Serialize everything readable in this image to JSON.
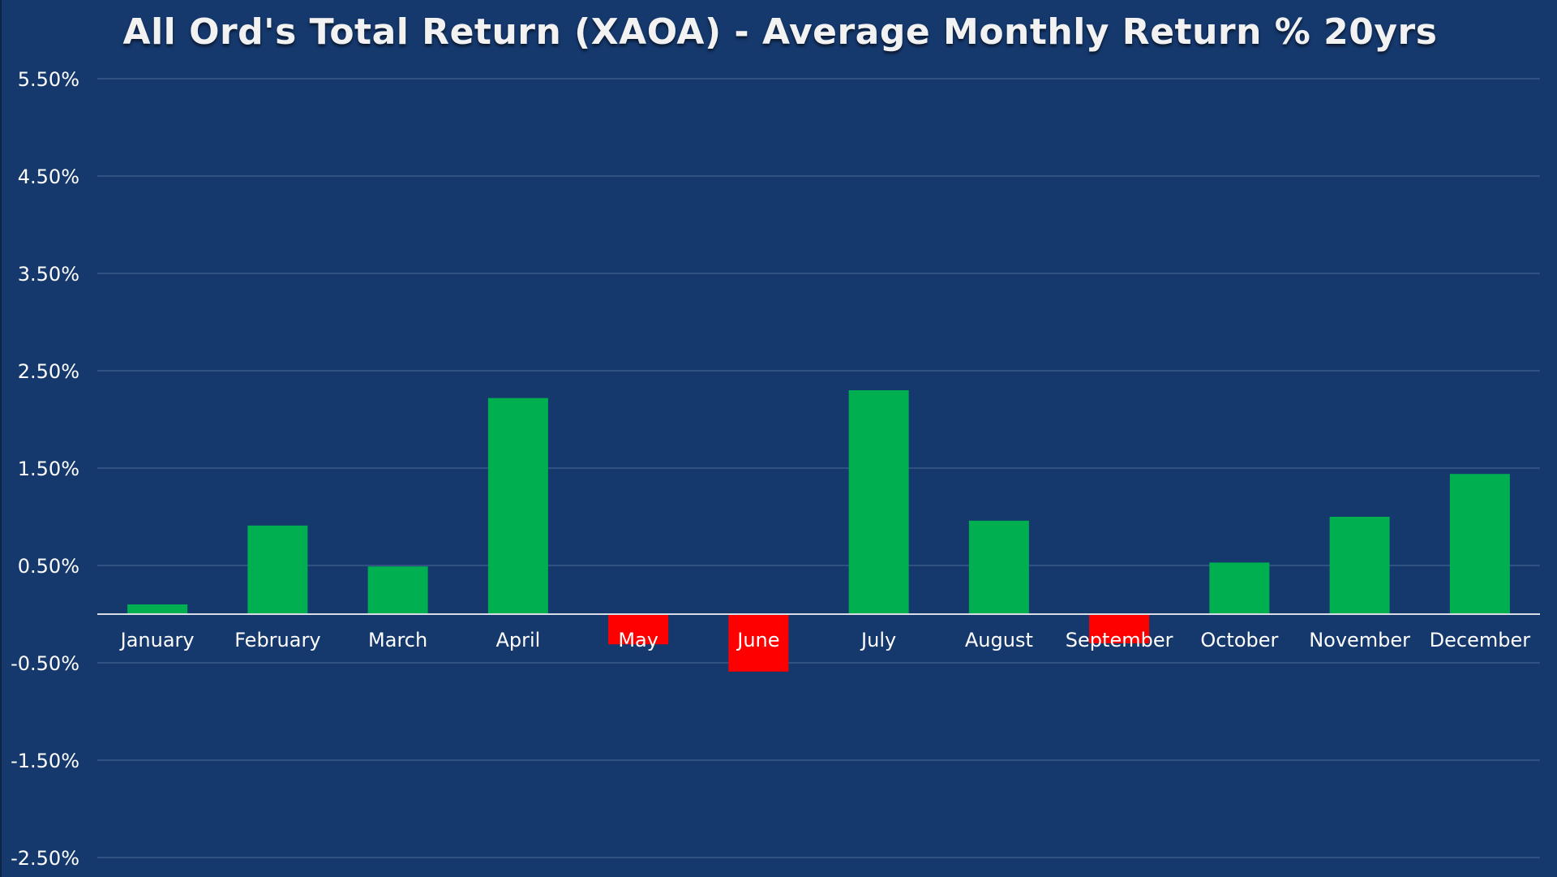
{
  "chart_data": {
    "type": "bar",
    "title": "All Ord's Total Return (XAOA) - Average Monthly Return % 20yrs",
    "xlabel": "",
    "ylabel": "",
    "categories": [
      "January",
      "February",
      "March",
      "April",
      "May",
      "June",
      "July",
      "August",
      "September",
      "October",
      "November",
      "December"
    ],
    "values": [
      0.1,
      0.91,
      0.49,
      2.22,
      -0.31,
      -0.59,
      2.3,
      0.96,
      -0.3,
      0.53,
      1.0,
      1.44
    ],
    "ylim": [
      -2.5,
      5.5
    ],
    "yticks": [
      5.5,
      4.5,
      3.5,
      2.5,
      1.5,
      0.5,
      -0.5,
      -1.5,
      -2.5
    ],
    "ytick_labels": [
      "5.50%",
      "4.50%",
      "3.50%",
      "2.50%",
      "1.50%",
      "0.50%",
      "-0.50%",
      "-1.50%",
      "-2.50%"
    ],
    "grid": true,
    "legend": "none",
    "colors": {
      "background": "#15386d",
      "positive": "#00b050",
      "negative": "#ff0000",
      "gridline": "#3a5a8a",
      "axis_line": "#d9dde6",
      "text": "#ffffff"
    }
  }
}
